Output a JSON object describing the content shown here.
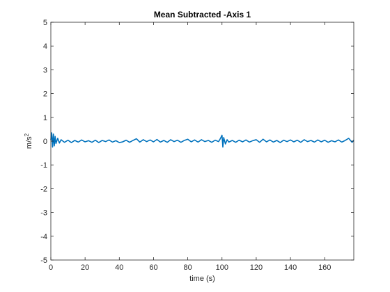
{
  "chart_data": {
    "type": "line",
    "title": "Mean Subtracted -Axis 1",
    "xlabel": "time (s)",
    "ylabel_base": "m/s",
    "ylabel_exp": "2",
    "xlim": [
      0,
      177
    ],
    "ylim": [
      -5,
      5
    ],
    "xticks": [
      "0",
      "20",
      "40",
      "60",
      "80",
      "100",
      "120",
      "140",
      "160"
    ],
    "yticks": [
      "-5",
      "-4",
      "-3",
      "-2",
      "-1",
      "0",
      "1",
      "2",
      "3",
      "4",
      "5"
    ],
    "grid": false,
    "series": [
      {
        "color": "#0072BD",
        "x": [
          0,
          0.5,
          1,
          1.5,
          2,
          2.5,
          3,
          4,
          5,
          6,
          8,
          10,
          12,
          14,
          16,
          18,
          20,
          22,
          24,
          26,
          28,
          30,
          32,
          34,
          36,
          38,
          40,
          42,
          44,
          46,
          48,
          50,
          52,
          54,
          56,
          58,
          60,
          62,
          64,
          66,
          68,
          70,
          72,
          74,
          76,
          78,
          80,
          82,
          84,
          86,
          88,
          90,
          92,
          94,
          96,
          98,
          99,
          100,
          100.5,
          101,
          102,
          103,
          104,
          106,
          108,
          110,
          112,
          114,
          116,
          118,
          120,
          122,
          124,
          126,
          128,
          130,
          132,
          134,
          136,
          138,
          140,
          142,
          144,
          146,
          148,
          150,
          152,
          154,
          156,
          158,
          160,
          162,
          164,
          166,
          168,
          170,
          172,
          174,
          176,
          177
        ],
        "y": [
          0.05,
          0.35,
          -0.25,
          0.3,
          -0.2,
          0.2,
          -0.1,
          0.12,
          -0.08,
          0.06,
          -0.05,
          0.04,
          -0.06,
          0.03,
          -0.04,
          0.05,
          -0.03,
          0.02,
          -0.05,
          0.04,
          -0.06,
          0.03,
          -0.02,
          0.05,
          -0.04,
          0.02,
          -0.06,
          -0.03,
          0.04,
          -0.05,
          0.03,
          0.1,
          -0.04,
          0.06,
          -0.02,
          0.05,
          -0.03,
          0.07,
          -0.04,
          0.03,
          -0.05,
          0.06,
          -0.02,
          0.04,
          -0.05,
          0.03,
          0.08,
          -0.03,
          0.05,
          -0.04,
          0.06,
          -0.02,
          0.03,
          -0.05,
          0.04,
          -0.02,
          0.1,
          0.25,
          -0.25,
          0.15,
          -0.12,
          0.06,
          -0.04,
          0.03,
          -0.05,
          0.04,
          -0.03,
          0.05,
          -0.04,
          0.02,
          0.06,
          -0.05,
          0.08,
          -0.03,
          0.05,
          -0.04,
          0.03,
          -0.06,
          0.04,
          -0.02,
          0.05,
          -0.03,
          0.04,
          -0.05,
          0.06,
          -0.02,
          0.03,
          -0.04,
          0.05,
          -0.03,
          0.04,
          -0.05,
          0.02,
          -0.03,
          0.05,
          -0.04,
          0.03,
          0.12,
          -0.05,
          0.04
        ]
      }
    ]
  }
}
